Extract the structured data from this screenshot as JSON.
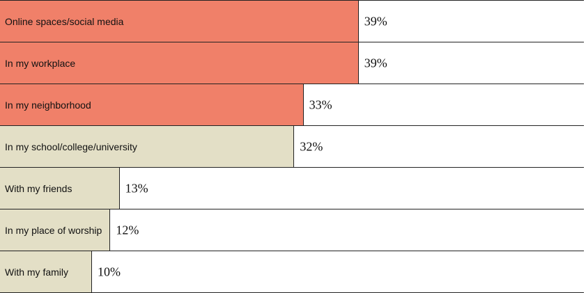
{
  "chart_data": {
    "type": "bar",
    "orientation": "horizontal",
    "categories": [
      "Online spaces/social media",
      "In my workplace",
      "In my neighborhood",
      "In my school/college/university",
      "With my friends",
      "In my place of worship",
      "With my family"
    ],
    "values": [
      39,
      39,
      33,
      32,
      13,
      12,
      10
    ],
    "value_labels": [
      "39%",
      "39%",
      "33%",
      "32%",
      "13%",
      "12%",
      "10%"
    ],
    "colors": [
      "#f08069",
      "#f08069",
      "#f08069",
      "#e3dfc6",
      "#e3dfc6",
      "#e3dfc6",
      "#e3dfc6"
    ]
  }
}
